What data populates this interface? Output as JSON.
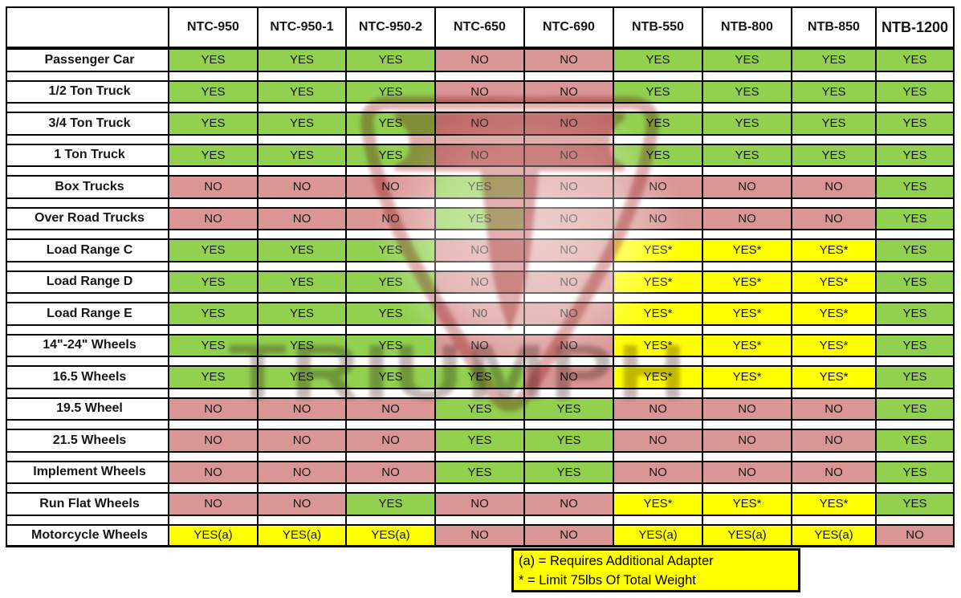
{
  "table": {
    "corner_label": "",
    "columns": [
      "NTC-950",
      "NTC-950-1",
      "NTC-950-2",
      "NTC-650",
      "NTC-690",
      "NTB-550",
      "NTB-800",
      "NTB-850",
      "NTB-1200"
    ],
    "rows": [
      {
        "label": "Passenger Car",
        "values": [
          "YES",
          "YES",
          "YES",
          "NO",
          "NO",
          "YES",
          "YES",
          "YES",
          "YES"
        ]
      },
      {
        "label": "1/2 Ton Truck",
        "values": [
          "YES",
          "YES",
          "YES",
          "NO",
          "NO",
          "YES",
          "YES",
          "YES",
          "YES"
        ]
      },
      {
        "label": "3/4 Ton Truck",
        "values": [
          "YES",
          "YES",
          "YES",
          "NO",
          "NO",
          "YES",
          "YES",
          "YES",
          "YES"
        ]
      },
      {
        "label": "1 Ton Truck",
        "values": [
          "YES",
          "YES",
          "YES",
          "NO",
          "NO",
          "YES",
          "YES",
          "YES",
          "YES"
        ]
      },
      {
        "label": "Box Trucks",
        "values": [
          "NO",
          "NO",
          "NO",
          "YES",
          "NO",
          "NO",
          "NO",
          "NO",
          "YES"
        ]
      },
      {
        "label": "Over Road Trucks",
        "values": [
          "NO",
          "NO",
          "NO",
          "YES",
          "NO",
          "NO",
          "NO",
          "NO",
          "YES"
        ]
      },
      {
        "label": "Load Range C",
        "values": [
          "YES",
          "YES",
          "YES",
          "NO",
          "NO",
          "YES*",
          "YES*",
          "YES*",
          "YES"
        ]
      },
      {
        "label": "Load Range D",
        "values": [
          "YES",
          "YES",
          "YES",
          "NO",
          "NO",
          "YES*",
          "YES*",
          "YES*",
          "YES"
        ]
      },
      {
        "label": "Load Range E",
        "values": [
          "YES",
          "YES",
          "YES",
          "N0",
          "NO",
          "YES*",
          "YES*",
          "YES*",
          "YES"
        ]
      },
      {
        "label": "14\"-24\" Wheels",
        "values": [
          "YES",
          "YES",
          "YES",
          "NO",
          "NO",
          "YES*",
          "YES*",
          "YES*",
          "YES"
        ]
      },
      {
        "label": "16.5 Wheels",
        "values": [
          "YES",
          "YES",
          "YES",
          "YES",
          "NO",
          "YES*",
          "YES*",
          "YES*",
          "YES"
        ]
      },
      {
        "label": "19.5 Wheel",
        "values": [
          "NO",
          "NO",
          "NO",
          "YES",
          "YES",
          "NO",
          "NO",
          "NO",
          "YES"
        ]
      },
      {
        "label": "21.5 Wheels",
        "values": [
          "NO",
          "NO",
          "NO",
          "YES",
          "YES",
          "NO",
          "NO",
          "NO",
          "YES"
        ]
      },
      {
        "label": "Implement Wheels",
        "values": [
          "NO",
          "NO",
          "NO",
          "YES",
          "YES",
          "NO",
          "NO",
          "NO",
          "YES"
        ]
      },
      {
        "label": "Run Flat Wheels",
        "values": [
          "NO",
          "NO",
          "YES",
          "NO",
          "NO",
          "YES*",
          "YES*",
          "YES*",
          "YES"
        ]
      },
      {
        "label": "Motorcycle Wheels",
        "values": [
          "YES(a)",
          "YES(a)",
          "YES(a)",
          "NO",
          "NO",
          "YES(a)",
          "YES(a)",
          "YES(a)",
          "NO"
        ]
      }
    ]
  },
  "legend": {
    "lines": [
      "(a) = Requires Additional Adapter",
      "* = Limit 75lbs Of Total Weight"
    ]
  },
  "watermark": {
    "text": "TRIUMPH"
  },
  "colors": {
    "yes": "#92D050",
    "no": "#D99694",
    "conditional": "#FFFF00"
  }
}
